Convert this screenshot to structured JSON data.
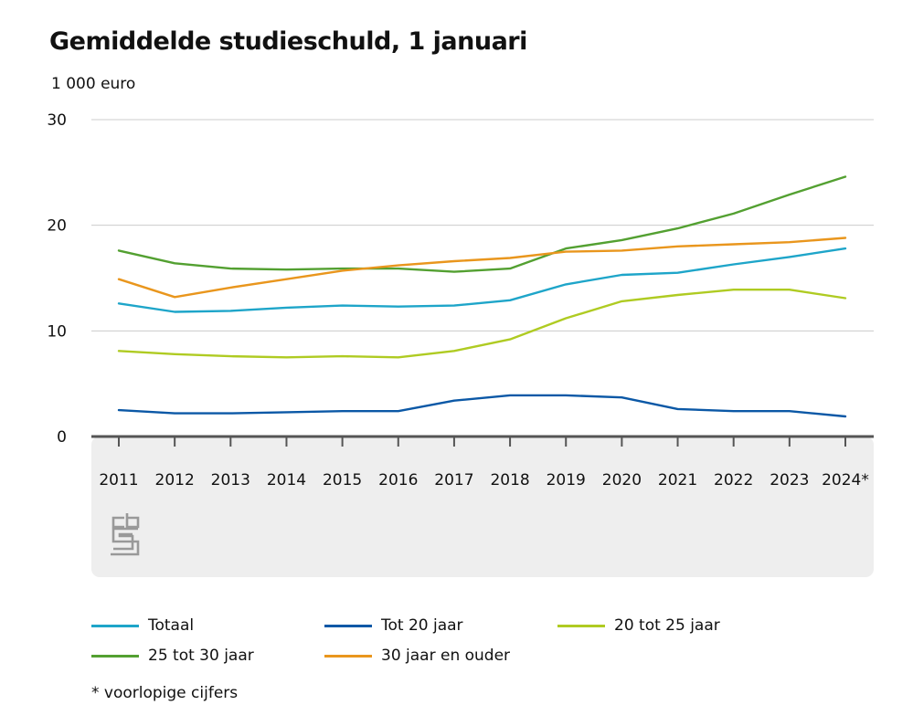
{
  "chart_data": {
    "type": "line",
    "title": "Gemiddelde studieschuld, 1 januari",
    "unit_label": "1 000 euro",
    "categories": [
      "2011",
      "2012",
      "2013",
      "2014",
      "2015",
      "2016",
      "2017",
      "2018",
      "2019",
      "2020",
      "2021",
      "2022",
      "2023",
      "2024*"
    ],
    "ylim": [
      0,
      30
    ],
    "yticks": [
      0,
      10,
      20,
      30
    ],
    "grid": true,
    "legend_position": "bottom",
    "series": [
      {
        "name": "Totaal",
        "color": "#1ea5c9",
        "values": [
          12.6,
          11.8,
          11.9,
          12.2,
          12.4,
          12.3,
          12.4,
          12.9,
          14.4,
          15.3,
          15.5,
          16.3,
          17.0,
          17.8
        ]
      },
      {
        "name": "Tot 20 jaar",
        "color": "#0b58a6",
        "values": [
          2.5,
          2.2,
          2.2,
          2.3,
          2.4,
          2.4,
          3.4,
          3.9,
          3.9,
          3.7,
          2.6,
          2.4,
          2.4,
          1.9
        ]
      },
      {
        "name": "20 tot 25 jaar",
        "color": "#afcb22",
        "values": [
          8.1,
          7.8,
          7.6,
          7.5,
          7.6,
          7.5,
          8.1,
          9.2,
          11.2,
          12.8,
          13.4,
          13.9,
          13.9,
          13.1
        ]
      },
      {
        "name": "25 tot 30 jaar",
        "color": "#53a031",
        "values": [
          17.6,
          16.4,
          15.9,
          15.8,
          15.9,
          15.9,
          15.6,
          15.9,
          17.8,
          18.6,
          19.7,
          21.1,
          22.9,
          24.6
        ]
      },
      {
        "name": "30 jaar en ouder",
        "color": "#e9961d",
        "values": [
          14.9,
          13.2,
          14.1,
          14.9,
          15.7,
          16.2,
          16.6,
          16.9,
          17.5,
          17.6,
          18.0,
          18.2,
          18.4,
          18.8
        ]
      }
    ],
    "footnote": "* voorlopige cijfers",
    "logo": "cbs"
  }
}
